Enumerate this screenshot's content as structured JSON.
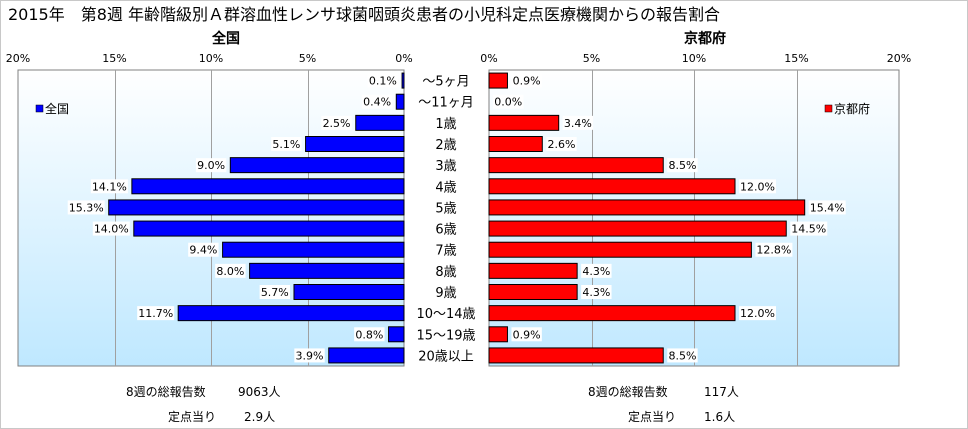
{
  "title": "2015年　第8週 年齢階級別Ａ群溶血性レンサ球菌咽頭炎患者の小児科定点医療機関からの報告割合",
  "chart_data": [
    {
      "type": "bar",
      "orientation": "horizontal",
      "direction": "reversed",
      "title": "全国",
      "legend": "全国",
      "legend_position": "top-left",
      "color": "#0000FF",
      "xlim": [
        0,
        20
      ],
      "ticks": [
        "20%",
        "15%",
        "10%",
        "5%",
        "0%"
      ],
      "grid": true,
      "categories": [
        "～5ヶ月",
        "～11ヶ月",
        "1歳",
        "2歳",
        "3歳",
        "4歳",
        "5歳",
        "6歳",
        "7歳",
        "8歳",
        "9歳",
        "10～14歳",
        "15～19歳",
        "20歳以上"
      ],
      "values": [
        0.1,
        0.4,
        2.5,
        5.1,
        9.0,
        14.1,
        15.3,
        14.0,
        9.4,
        8.0,
        5.7,
        11.7,
        0.8,
        3.9
      ],
      "labels": [
        "0.1%",
        "0.4%",
        "2.5%",
        "5.1%",
        "9.0%",
        "14.1%",
        "15.3%",
        "14.0%",
        "9.4%",
        "8.0%",
        "5.7%",
        "11.7%",
        "0.8%",
        "3.9%"
      ]
    },
    {
      "type": "bar",
      "orientation": "horizontal",
      "title": "京都府",
      "legend": "京都府",
      "legend_position": "top-right",
      "color": "#FF0000",
      "xlim": [
        0,
        20
      ],
      "ticks": [
        "0%",
        "5%",
        "10%",
        "15%",
        "20%"
      ],
      "grid": true,
      "categories": [
        "～5ヶ月",
        "～11ヶ月",
        "1歳",
        "2歳",
        "3歳",
        "4歳",
        "5歳",
        "6歳",
        "7歳",
        "8歳",
        "9歳",
        "10～14歳",
        "15～19歳",
        "20歳以上"
      ],
      "values": [
        0.9,
        0.0,
        3.4,
        2.6,
        8.5,
        12.0,
        15.4,
        14.5,
        12.8,
        4.3,
        4.3,
        12.0,
        0.9,
        8.5
      ],
      "labels": [
        "0.9%",
        "0.0%",
        "3.4%",
        "2.6%",
        "8.5%",
        "12.0%",
        "15.4%",
        "14.5%",
        "12.8%",
        "4.3%",
        "4.3%",
        "12.0%",
        "0.9%",
        "8.5%"
      ]
    }
  ],
  "colors": {
    "bg_top": "#FFFFFF",
    "bg_bottom": "#BFE8FF",
    "gridline": "#A0A0A0"
  },
  "footer": {
    "national": {
      "total_label": "8週の総報告数",
      "total_value": "9063人",
      "perpoint_label": "定点当り",
      "perpoint_value": "2.9人"
    },
    "kyoto": {
      "total_label": "8週の総報告数",
      "total_value": "117人",
      "perpoint_label": "定点当り",
      "perpoint_value": "1.6人"
    }
  }
}
